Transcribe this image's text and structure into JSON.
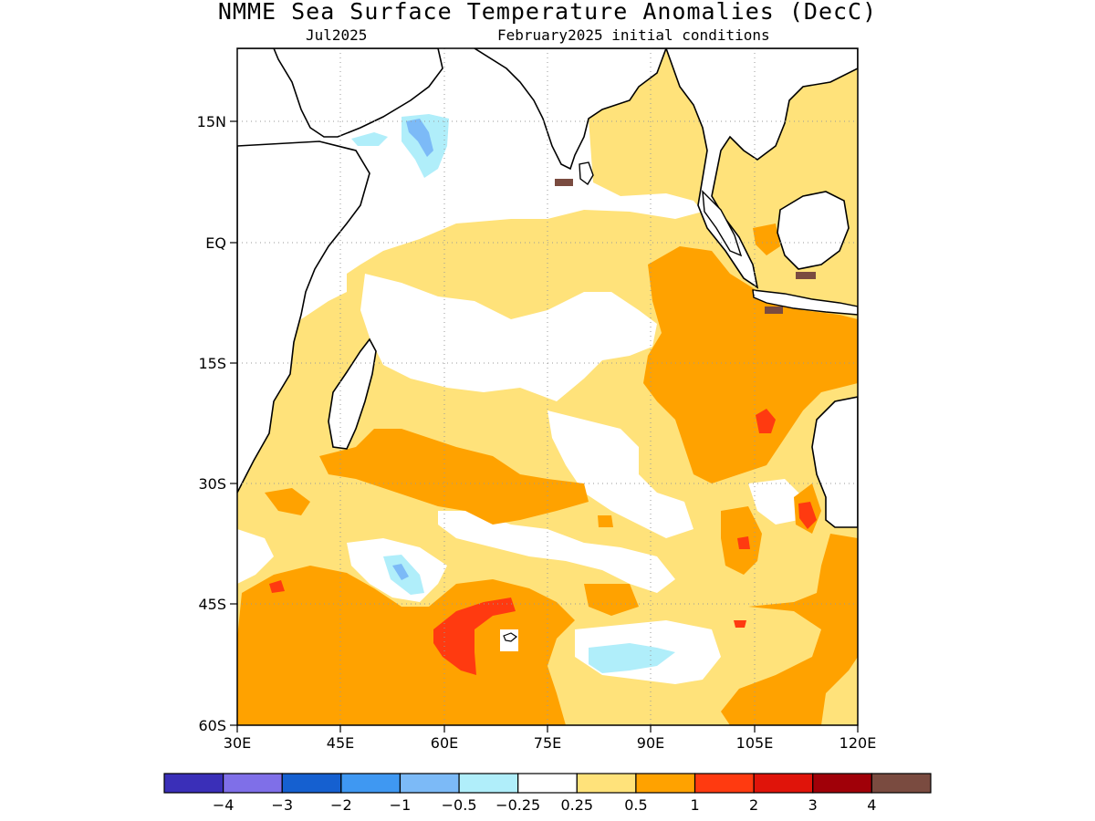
{
  "title": "NMME Sea Surface Temperature Anomalies (DecC)",
  "target_month": "Jul2025",
  "initial_conditions": "February2025 initial conditions",
  "map": {
    "lon_range": [
      30,
      120
    ],
    "lat_range": [
      -60,
      24
    ],
    "x_ticks": [
      "30E",
      "45E",
      "60E",
      "75E",
      "90E",
      "105E",
      "120E"
    ],
    "y_ticks": [
      "15N",
      "EQ",
      "15S",
      "30S",
      "45S",
      "60S"
    ],
    "gridlines": "dotted"
  },
  "colorbar": {
    "labels": [
      "−4",
      "−3",
      "−2",
      "−1",
      "−0.5",
      "−0.25",
      "0.25",
      "0.5",
      "1",
      "2",
      "3",
      "4"
    ],
    "colors": [
      "#3a2fb8",
      "#7f6fe8",
      "#1560d0",
      "#3f98f2",
      "#7cbaf7",
      "#b0eefa",
      "#ffffff",
      "#ffe27a",
      "#ffa200",
      "#ff3a10",
      "#e0140a",
      "#a00008",
      "#7a4b40"
    ]
  },
  "palette": {
    "white": "#ffffff",
    "light_yellow": "#ffe27a",
    "orange": "#ffa200",
    "red_orange": "#ff3a10",
    "light_cyan": "#b0eefa",
    "light_blue": "#7cbaf7",
    "brown": "#7a4b40"
  }
}
